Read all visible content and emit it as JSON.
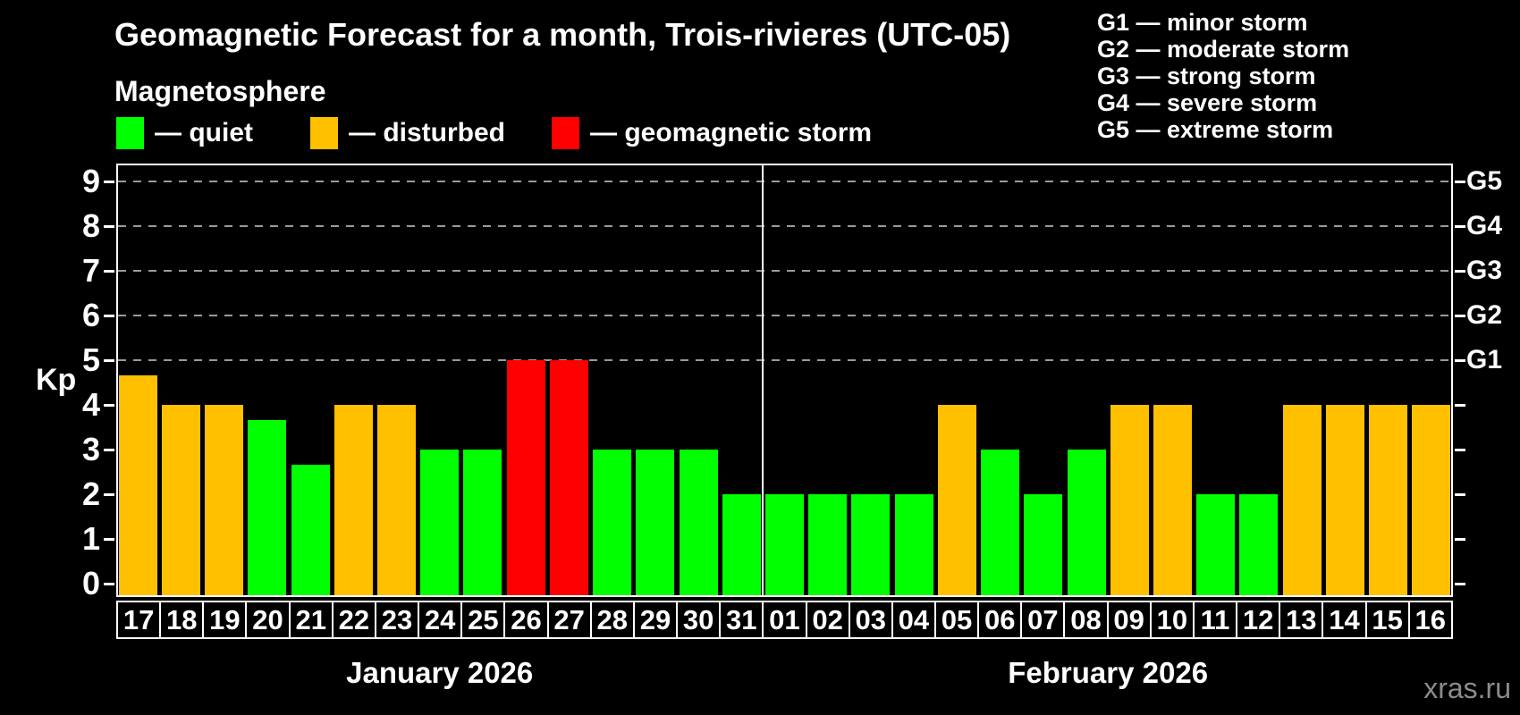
{
  "header": {
    "title": "Geomagnetic Forecast for a month, Trois-rivieres (UTC-05)",
    "subtitle": "Magnetosphere"
  },
  "legend": {
    "items": [
      {
        "key": "quiet",
        "label": "— quiet",
        "color": "#00ff00"
      },
      {
        "key": "disturbed",
        "label": "— disturbed",
        "color": "#ffc000"
      },
      {
        "key": "storm",
        "label": "— geomagnetic storm",
        "color": "#ff0000"
      }
    ]
  },
  "g_legend": {
    "lines": [
      "G1 — minor storm",
      "G2 — moderate storm",
      "G3 — strong storm",
      "G4 — severe storm",
      "G5 — extreme storm"
    ]
  },
  "footer": {
    "watermark": "xras.ru"
  },
  "chart_data": {
    "type": "bar",
    "title": "Geomagnetic Forecast for a month, Trois-rivieres (UTC-05)",
    "xlabel": "",
    "ylabel": "Kp",
    "ylim": [
      0,
      9
    ],
    "yticks": [
      0,
      1,
      2,
      3,
      4,
      5,
      6,
      7,
      8,
      9
    ],
    "grid_kp_levels": [
      5,
      6,
      7,
      8,
      9
    ],
    "grid_on": true,
    "legend_position": "top",
    "right_axis": [
      {
        "kp": 5,
        "label": "G1"
      },
      {
        "kp": 6,
        "label": "G2"
      },
      {
        "kp": 7,
        "label": "G3"
      },
      {
        "kp": 8,
        "label": "G4"
      },
      {
        "kp": 9,
        "label": "G5"
      }
    ],
    "status_colors": {
      "quiet": "#00ff00",
      "disturbed": "#ffc000",
      "storm": "#ff0000"
    },
    "months": [
      {
        "label": "January 2026",
        "days": [
          {
            "day": "17",
            "kp": 4.67,
            "status": "disturbed"
          },
          {
            "day": "18",
            "kp": 4,
            "status": "disturbed"
          },
          {
            "day": "19",
            "kp": 4,
            "status": "disturbed"
          },
          {
            "day": "20",
            "kp": 3.67,
            "status": "quiet"
          },
          {
            "day": "21",
            "kp": 2.67,
            "status": "quiet"
          },
          {
            "day": "22",
            "kp": 4,
            "status": "disturbed"
          },
          {
            "day": "23",
            "kp": 4,
            "status": "disturbed"
          },
          {
            "day": "24",
            "kp": 3,
            "status": "quiet"
          },
          {
            "day": "25",
            "kp": 3,
            "status": "quiet"
          },
          {
            "day": "26",
            "kp": 5,
            "status": "storm"
          },
          {
            "day": "27",
            "kp": 5,
            "status": "storm"
          },
          {
            "day": "28",
            "kp": 3,
            "status": "quiet"
          },
          {
            "day": "29",
            "kp": 3,
            "status": "quiet"
          },
          {
            "day": "30",
            "kp": 3,
            "status": "quiet"
          },
          {
            "day": "31",
            "kp": 2,
            "status": "quiet"
          }
        ]
      },
      {
        "label": "February 2026",
        "days": [
          {
            "day": "01",
            "kp": 2,
            "status": "quiet"
          },
          {
            "day": "02",
            "kp": 2,
            "status": "quiet"
          },
          {
            "day": "03",
            "kp": 2,
            "status": "quiet"
          },
          {
            "day": "04",
            "kp": 2,
            "status": "quiet"
          },
          {
            "day": "05",
            "kp": 4,
            "status": "disturbed"
          },
          {
            "day": "06",
            "kp": 3,
            "status": "quiet"
          },
          {
            "day": "07",
            "kp": 2,
            "status": "quiet"
          },
          {
            "day": "08",
            "kp": 3,
            "status": "quiet"
          },
          {
            "day": "09",
            "kp": 4,
            "status": "disturbed"
          },
          {
            "day": "10",
            "kp": 4,
            "status": "disturbed"
          },
          {
            "day": "11",
            "kp": 2,
            "status": "quiet"
          },
          {
            "day": "12",
            "kp": 2,
            "status": "quiet"
          },
          {
            "day": "13",
            "kp": 4,
            "status": "disturbed"
          },
          {
            "day": "14",
            "kp": 4,
            "status": "disturbed"
          },
          {
            "day": "15",
            "kp": 4,
            "status": "disturbed"
          },
          {
            "day": "16",
            "kp": 4,
            "status": "disturbed"
          }
        ]
      }
    ]
  }
}
